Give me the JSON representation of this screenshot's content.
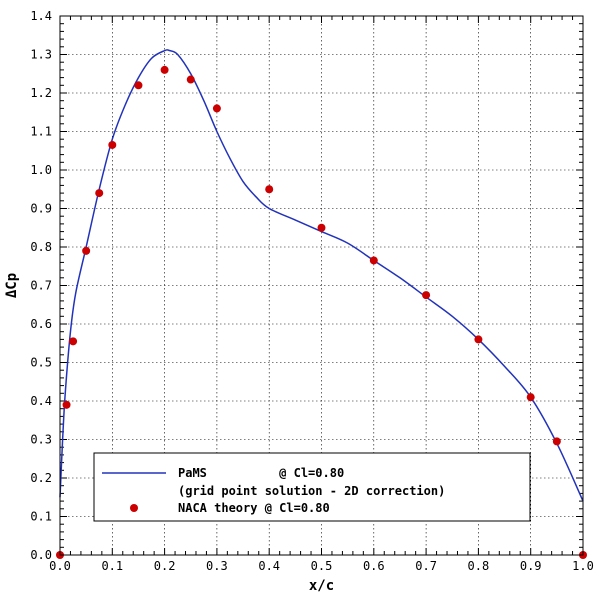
{
  "chart_data": {
    "type": "line",
    "xlabel": "x/c",
    "ylabel": "ΔCp",
    "xlim": [
      0.0,
      1.0
    ],
    "ylim": [
      0.0,
      1.4
    ],
    "xticks": [
      "0.0",
      "0.1",
      "0.2",
      "0.3",
      "0.4",
      "0.5",
      "0.6",
      "0.7",
      "0.8",
      "0.9",
      "1.0"
    ],
    "yticks": [
      "0.0",
      "0.1",
      "0.2",
      "0.3",
      "0.4",
      "0.5",
      "0.6",
      "0.7",
      "0.8",
      "0.9",
      "1.0",
      "1.1",
      "1.2",
      "1.3",
      "1.4"
    ],
    "grid": true,
    "legend_position": "bottom-left",
    "series": [
      {
        "name": "PaMS          @ Cl=0.80",
        "subtitle": "(grid point solution - 2D correction)",
        "style": "line",
        "color": "#2233bb",
        "x": [
          0.0,
          0.005,
          0.01,
          0.02,
          0.03,
          0.05,
          0.075,
          0.1,
          0.125,
          0.15,
          0.175,
          0.2,
          0.21,
          0.225,
          0.25,
          0.275,
          0.3,
          0.325,
          0.35,
          0.375,
          0.4,
          0.45,
          0.5,
          0.55,
          0.6,
          0.65,
          0.7,
          0.75,
          0.8,
          0.85,
          0.9,
          0.95,
          1.0
        ],
        "y": [
          0.15,
          0.3,
          0.42,
          0.58,
          0.68,
          0.8,
          0.95,
          1.08,
          1.17,
          1.24,
          1.29,
          1.31,
          1.31,
          1.3,
          1.25,
          1.18,
          1.1,
          1.03,
          0.97,
          0.93,
          0.9,
          0.87,
          0.84,
          0.81,
          0.765,
          0.72,
          0.67,
          0.62,
          0.56,
          0.49,
          0.41,
          0.29,
          0.14
        ]
      },
      {
        "name": "NACA theory @ Cl=0.80",
        "style": "markers",
        "color": "#cc0000",
        "x": [
          0.0,
          0.0125,
          0.025,
          0.05,
          0.075,
          0.1,
          0.15,
          0.2,
          0.25,
          0.3,
          0.4,
          0.5,
          0.6,
          0.7,
          0.8,
          0.9,
          0.95,
          1.0
        ],
        "y": [
          0.0,
          0.39,
          0.555,
          0.79,
          0.94,
          1.065,
          1.22,
          1.26,
          1.235,
          1.16,
          0.95,
          0.85,
          0.765,
          0.675,
          0.56,
          0.41,
          0.295,
          0.0
        ]
      }
    ]
  }
}
